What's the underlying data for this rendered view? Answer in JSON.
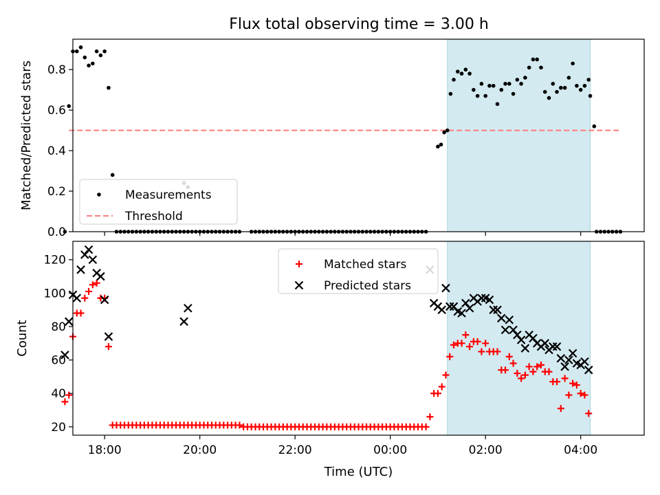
{
  "chart_data": [
    {
      "type": "scatter",
      "title": "Flux total observing time = 3.00 h",
      "xlabel": "",
      "ylabel": "Matched/Predicted stars",
      "xlim": [
        "17:20",
        "05:20"
      ],
      "ylim": [
        0,
        0.95
      ],
      "y_ticks": [
        "0.0",
        "0.2",
        "0.4",
        "0.6",
        "0.8"
      ],
      "x_ticks": [
        "18:00",
        "20:00",
        "22:00",
        "00:00",
        "02:00",
        "04:00"
      ],
      "highlight_span": {
        "start": "01:12",
        "end": "04:12",
        "color": "#d3eaf0"
      },
      "threshold": {
        "name": "Threshold",
        "value": 0.5,
        "start": "17:15",
        "end": "04:50",
        "color": "#ff7b7b"
      },
      "legend": {
        "position": "lower-left",
        "entries": [
          "Measurements",
          "Threshold"
        ]
      },
      "series": [
        {
          "name": "Measurements",
          "color": "#000000",
          "marker": "dot",
          "x": [
            "17:10",
            "17:15",
            "17:20",
            "17:25",
            "17:30",
            "17:35",
            "17:40",
            "17:45",
            "17:50",
            "17:55",
            "18:00",
            "18:05",
            "18:10",
            "19:40",
            "19:45",
            "01:00",
            "01:04",
            "01:08",
            "01:12",
            "01:16",
            "04:12",
            "04:17"
          ],
          "y": [
            0.0,
            0.62,
            0.89,
            0.89,
            0.91,
            0.86,
            0.82,
            0.83,
            0.89,
            0.87,
            0.89,
            0.71,
            0.28,
            0.24,
            0.22,
            0.42,
            0.43,
            0.49,
            0.5,
            0.68,
            0.67,
            0.52
          ]
        }
      ],
      "zero_runs": [
        {
          "start": "18:15",
          "end": "20:50",
          "step_min": 5
        },
        {
          "start": "21:05",
          "end": "00:45",
          "step_min": 5
        },
        {
          "start": "04:20",
          "end": "04:50",
          "step_min": 5
        }
      ],
      "observing_points": {
        "start": "01:20",
        "step_min": 5,
        "y": [
          0.75,
          0.79,
          0.78,
          0.8,
          0.78,
          0.7,
          0.67,
          0.73,
          0.67,
          0.72,
          0.72,
          0.63,
          0.7,
          0.73,
          0.73,
          0.68,
          0.75,
          0.73,
          0.76,
          0.81,
          0.85,
          0.85,
          0.81,
          0.69,
          0.66,
          0.73,
          0.69,
          0.71,
          0.71,
          0.76,
          0.83,
          0.72,
          0.7,
          0.72,
          0.75
        ]
      }
    },
    {
      "type": "scatter",
      "title": "",
      "xlabel": "Time (UTC)",
      "ylabel": "Count",
      "xlim": [
        "17:20",
        "05:20"
      ],
      "ylim": [
        15,
        131
      ],
      "y_ticks": [
        "20",
        "40",
        "60",
        "80",
        "100",
        "120"
      ],
      "x_ticks": [
        "18:00",
        "20:00",
        "22:00",
        "00:00",
        "02:00",
        "04:00"
      ],
      "highlight_span": {
        "start": "01:12",
        "end": "04:12",
        "color": "#d3eaf0"
      },
      "legend": {
        "position": "top-center",
        "entries": [
          "Matched stars",
          "Predicted stars"
        ]
      },
      "series": [
        {
          "name": "Matched stars",
          "color": "#ff0000",
          "marker": "plus",
          "x": [
            "17:10",
            "17:15",
            "17:20",
            "17:25",
            "17:30",
            "17:35",
            "17:40",
            "17:45",
            "17:50",
            "17:55",
            "18:00",
            "18:05",
            "18:10",
            "00:50",
            "00:55",
            "01:00",
            "01:05",
            "01:10",
            "01:15",
            "01:20",
            "01:25",
            "01:30",
            "01:35",
            "01:40",
            "01:45",
            "01:50",
            "01:55",
            "02:00",
            "02:05",
            "02:10",
            "02:15",
            "02:20",
            "02:25",
            "02:30",
            "02:35",
            "02:40",
            "02:45",
            "02:50",
            "02:55",
            "03:00",
            "03:05",
            "03:10",
            "03:15",
            "03:20",
            "03:25",
            "03:30",
            "03:35",
            "03:40",
            "03:45",
            "03:50",
            "03:55",
            "04:00",
            "04:05",
            "04:10"
          ],
          "y": [
            35,
            39,
            74,
            88,
            88,
            97,
            101,
            105,
            106,
            97,
            97,
            68,
            21,
            26,
            40,
            40,
            44,
            51,
            62,
            69,
            70,
            70,
            75,
            68,
            71,
            71,
            65,
            70,
            65,
            65,
            65,
            54,
            54,
            62,
            58,
            52,
            49,
            51,
            56,
            53,
            56,
            57,
            53,
            53,
            47,
            47,
            31,
            49,
            39,
            46,
            45,
            40,
            39,
            28
          ]
        },
        {
          "name": "Predicted stars",
          "color": "#000000",
          "marker": "x",
          "x": [
            "17:10",
            "17:15",
            "17:20",
            "17:25",
            "17:30",
            "17:35",
            "17:40",
            "17:45",
            "17:50",
            "17:55",
            "18:00",
            "18:05",
            "18:10",
            "19:40",
            "19:45",
            "00:50",
            "00:55",
            "01:00",
            "01:05",
            "01:10",
            "01:15",
            "01:20",
            "01:25",
            "01:30",
            "01:35",
            "01:40",
            "01:45",
            "01:50",
            "01:55",
            "02:00",
            "02:05",
            "02:10",
            "02:15",
            "02:20",
            "02:25",
            "02:30",
            "02:35",
            "02:40",
            "02:45",
            "02:50",
            "02:55",
            "03:00",
            "03:05",
            "03:10",
            "03:15",
            "03:20",
            "03:25",
            "03:30",
            "03:35",
            "03:40",
            "03:45",
            "03:50",
            "03:55",
            "04:00",
            "04:05",
            "04:10"
          ],
          "y": [
            63,
            83,
            99,
            97,
            114,
            123,
            126,
            120,
            112,
            110,
            96,
            74,
            null,
            83,
            91,
            114,
            94,
            92,
            90,
            103,
            92,
            92,
            89,
            88,
            94,
            91,
            97,
            95,
            97,
            97,
            96,
            90,
            90,
            85,
            78,
            84,
            78,
            75,
            72,
            67,
            75,
            73,
            70,
            68,
            70,
            66,
            68,
            68,
            61,
            56,
            60,
            64,
            58,
            57,
            59,
            54
          ]
        }
      ],
      "flat_run": {
        "series": "Matched stars",
        "start": "18:15",
        "end": "00:45",
        "step_min": 5,
        "value_a": 21,
        "value_b": 20,
        "switch_at": "20:55"
      }
    }
  ]
}
